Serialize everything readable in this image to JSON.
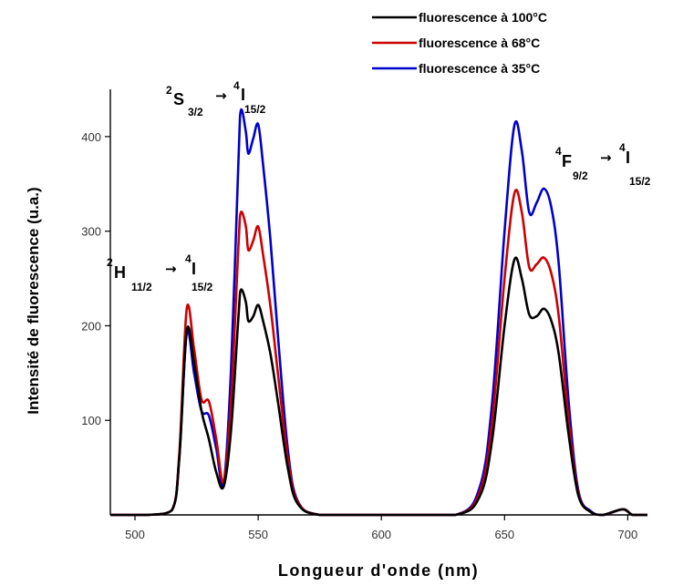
{
  "chart_data": {
    "type": "line",
    "xlabel": "Longueur d'onde (nm)",
    "ylabel": "Intensité de fluorescence (u.a.)",
    "xlim": [
      490,
      708
    ],
    "ylim": [
      0,
      450
    ],
    "x_ticks": [
      500,
      550,
      600,
      650,
      700
    ],
    "y_ticks": [
      100,
      200,
      300,
      400
    ],
    "grid": false,
    "legend_position": "top-right",
    "x": [
      490,
      505,
      515,
      518,
      521,
      524,
      527,
      530,
      533,
      536,
      539,
      542,
      543,
      545,
      546,
      548,
      550,
      552,
      555,
      558,
      562,
      566,
      575,
      600,
      630,
      640,
      645,
      650,
      654,
      657,
      660,
      663,
      666,
      669,
      672,
      676,
      680,
      685,
      690,
      698,
      702,
      708
    ],
    "series": [
      {
        "name": "fluorescence à 100°C",
        "color": "#000000",
        "values": [
          0,
          0,
          5,
          60,
          195,
          160,
          110,
          80,
          45,
          30,
          90,
          210,
          238,
          225,
          205,
          210,
          222,
          205,
          170,
          120,
          50,
          12,
          0,
          0,
          0,
          20,
          80,
          200,
          270,
          250,
          212,
          210,
          218,
          205,
          170,
          85,
          20,
          3,
          0,
          6,
          0,
          0
        ]
      },
      {
        "name": "fluorescence à 68°C",
        "color": "#cc0000",
        "values": [
          0,
          0,
          5,
          65,
          218,
          175,
          122,
          120,
          80,
          35,
          120,
          285,
          320,
          305,
          280,
          290,
          305,
          275,
          220,
          150,
          60,
          14,
          0,
          0,
          0,
          25,
          100,
          250,
          340,
          320,
          262,
          265,
          272,
          255,
          210,
          100,
          22,
          3,
          0,
          6,
          0,
          0
        ]
      },
      {
        "name": "fluorescence à 35°C",
        "color": "#0000cc",
        "values": [
          0,
          0,
          5,
          62,
          192,
          150,
          110,
          105,
          70,
          33,
          155,
          375,
          428,
          405,
          382,
          398,
          413,
          370,
          290,
          190,
          70,
          15,
          0,
          0,
          0,
          30,
          120,
          300,
          412,
          385,
          320,
          330,
          345,
          325,
          265,
          120,
          25,
          4,
          0,
          6,
          0,
          0
        ]
      }
    ],
    "annotations": [
      {
        "main": "S",
        "sup_left": "2",
        "sub": "3/2",
        "arrow": "→",
        "sup2": "4",
        "main2": "I",
        "sub2": "15/2"
      },
      {
        "main": "H",
        "sup_left": "2",
        "sub": "11/2",
        "arrow": "→",
        "sup2": "4",
        "main2": "I",
        "sub2": "15/2"
      },
      {
        "main": "F",
        "sup_left": "4",
        "sub": "9/2",
        "arrow": "→",
        "sup2": "4",
        "main2": "I",
        "sub2": "15/2"
      }
    ]
  }
}
